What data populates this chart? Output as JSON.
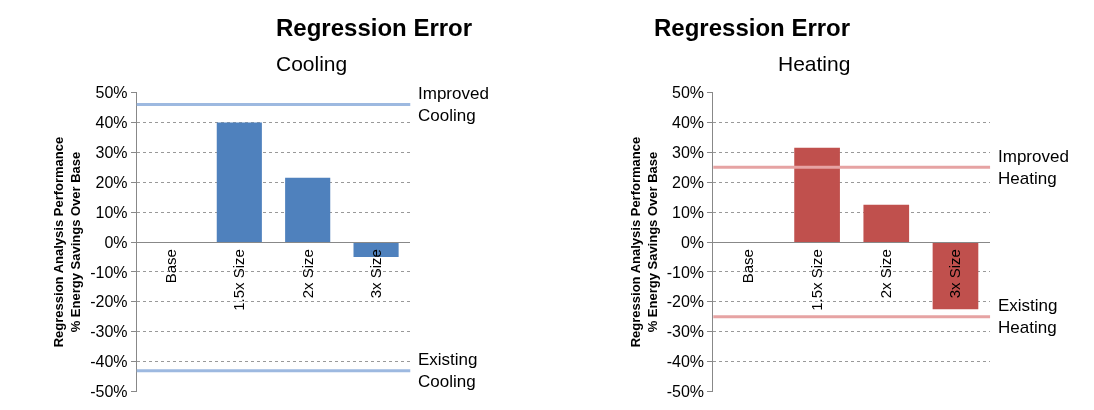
{
  "chart_data": [
    {
      "type": "bar",
      "title": "Regression Error",
      "subtitle": "Cooling",
      "ylabel": "Regression Analysis Performance\n% Energy Savings Over Base",
      "categories": [
        "Base",
        "1.5x Size",
        "2x Size",
        "3x Size"
      ],
      "values": [
        0,
        40,
        21.5,
        -5
      ],
      "color": "#4f81bd",
      "ylim": [
        -50,
        50
      ],
      "yticks": [
        {
          "value": -50,
          "label": "-50%"
        },
        {
          "value": -40,
          "label": "-40%"
        },
        {
          "value": -30,
          "label": "-30%"
        },
        {
          "value": -20,
          "label": "-20%"
        },
        {
          "value": -10,
          "label": "-10%"
        },
        {
          "value": 0,
          "label": "0%"
        },
        {
          "value": 10,
          "label": "10%"
        },
        {
          "value": 20,
          "label": "20%"
        },
        {
          "value": 30,
          "label": "30%"
        },
        {
          "value": 40,
          "label": "40%"
        },
        {
          "value": 50,
          "label": "50%"
        }
      ],
      "grid": "y",
      "ref_lines": [
        {
          "axis": "y",
          "value": 46,
          "label": "Improved Cooling",
          "color": "#9db9e0"
        },
        {
          "axis": "y",
          "value": -43,
          "label": "Existing Cooling",
          "color": "#9db9e0"
        }
      ]
    },
    {
      "type": "bar",
      "title": "Regression Error",
      "subtitle": "Heating",
      "ylabel": "Regression Analysis Performance\n% Energy Savings Over Base",
      "categories": [
        "Base",
        "1.5x Size",
        "2x Size",
        "3x Size"
      ],
      "values": [
        0,
        31.5,
        12.5,
        -22.5
      ],
      "color": "#c0504d",
      "ylim": [
        -50,
        50
      ],
      "yticks": [
        {
          "value": -50,
          "label": "-50%"
        },
        {
          "value": -40,
          "label": "-40%"
        },
        {
          "value": -30,
          "label": "-30%"
        },
        {
          "value": -20,
          "label": "-20%"
        },
        {
          "value": -10,
          "label": "-10%"
        },
        {
          "value": 0,
          "label": "0%"
        },
        {
          "value": 10,
          "label": "10%"
        },
        {
          "value": 20,
          "label": "20%"
        },
        {
          "value": 30,
          "label": "30%"
        },
        {
          "value": 40,
          "label": "40%"
        },
        {
          "value": 50,
          "label": "50%"
        }
      ],
      "grid": "y",
      "ref_lines": [
        {
          "axis": "y",
          "value": 25,
          "label": "Improved Heating",
          "color": "#e6a3a3"
        },
        {
          "axis": "y",
          "value": -25,
          "label": "Existing Heating",
          "color": "#e6a3a3"
        }
      ]
    }
  ]
}
